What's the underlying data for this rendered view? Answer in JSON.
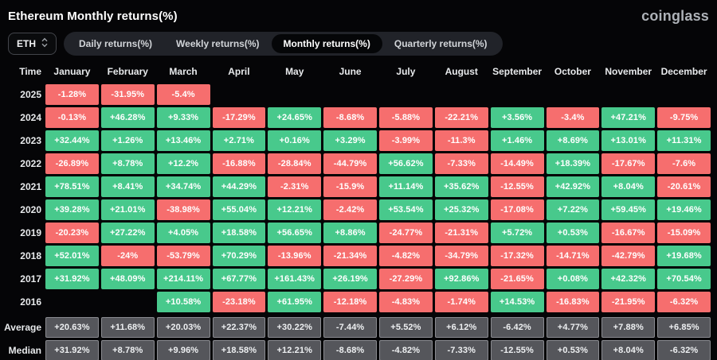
{
  "header": {
    "title": "Ethereum Monthly returns(%)",
    "logo": "coinglass"
  },
  "controls": {
    "symbol": {
      "label": "ETH"
    },
    "tabs": [
      {
        "label": "Daily returns(%)",
        "active": false
      },
      {
        "label": "Weekly returns(%)",
        "active": false
      },
      {
        "label": "Monthly returns(%)",
        "active": true
      },
      {
        "label": "Quarterly returns(%)",
        "active": false
      }
    ]
  },
  "colors": {
    "positive": "#48c98c",
    "negative": "#f66e6e",
    "neutral": "#55565b",
    "neutral_border": "#8a8b90",
    "background": "#050507"
  },
  "chart_data": {
    "type": "heatmap",
    "title": "Ethereum Monthly returns(%)",
    "columns": [
      "Time",
      "January",
      "February",
      "March",
      "April",
      "May",
      "June",
      "July",
      "August",
      "September",
      "October",
      "November",
      "December"
    ],
    "rows": [
      {
        "label": "2025",
        "kind": "year",
        "values": [
          "-1.28%",
          "-31.95%",
          "-5.4%",
          "",
          "",
          "",
          "",
          "",
          "",
          "",
          "",
          ""
        ]
      },
      {
        "label": "2024",
        "kind": "year",
        "values": [
          "-0.13%",
          "+46.28%",
          "+9.33%",
          "-17.29%",
          "+24.65%",
          "-8.68%",
          "-5.88%",
          "-22.21%",
          "+3.56%",
          "-3.4%",
          "+47.21%",
          "-9.75%"
        ]
      },
      {
        "label": "2023",
        "kind": "year",
        "values": [
          "+32.44%",
          "+1.26%",
          "+13.46%",
          "+2.71%",
          "+0.16%",
          "+3.29%",
          "-3.99%",
          "-11.3%",
          "+1.46%",
          "+8.69%",
          "+13.01%",
          "+11.31%"
        ]
      },
      {
        "label": "2022",
        "kind": "year",
        "values": [
          "-26.89%",
          "+8.78%",
          "+12.2%",
          "-16.88%",
          "-28.84%",
          "-44.79%",
          "+56.62%",
          "-7.33%",
          "-14.49%",
          "+18.39%",
          "-17.67%",
          "-7.6%"
        ]
      },
      {
        "label": "2021",
        "kind": "year",
        "values": [
          "+78.51%",
          "+8.41%",
          "+34.74%",
          "+44.29%",
          "-2.31%",
          "-15.9%",
          "+11.14%",
          "+35.62%",
          "-12.55%",
          "+42.92%",
          "+8.04%",
          "-20.61%"
        ]
      },
      {
        "label": "2020",
        "kind": "year",
        "values": [
          "+39.28%",
          "+21.01%",
          "-38.98%",
          "+55.04%",
          "+12.21%",
          "-2.42%",
          "+53.54%",
          "+25.32%",
          "-17.08%",
          "+7.22%",
          "+59.45%",
          "+19.46%"
        ]
      },
      {
        "label": "2019",
        "kind": "year",
        "values": [
          "-20.23%",
          "+27.22%",
          "+4.05%",
          "+18.58%",
          "+56.65%",
          "+8.86%",
          "-24.77%",
          "-21.31%",
          "+5.72%",
          "+0.53%",
          "-16.67%",
          "-15.09%"
        ]
      },
      {
        "label": "2018",
        "kind": "year",
        "values": [
          "+52.01%",
          "-24%",
          "-53.79%",
          "+70.29%",
          "-13.96%",
          "-21.34%",
          "-4.82%",
          "-34.79%",
          "-17.32%",
          "-14.71%",
          "-42.79%",
          "+19.68%"
        ]
      },
      {
        "label": "2017",
        "kind": "year",
        "values": [
          "+31.92%",
          "+48.09%",
          "+214.11%",
          "+67.77%",
          "+161.43%",
          "+26.19%",
          "-27.29%",
          "+92.86%",
          "-21.65%",
          "+0.08%",
          "+42.32%",
          "+70.54%"
        ]
      },
      {
        "label": "2016",
        "kind": "year",
        "values": [
          "",
          "",
          "+10.58%",
          "-23.18%",
          "+61.95%",
          "-12.18%",
          "-4.83%",
          "-1.74%",
          "+14.53%",
          "-16.83%",
          "-21.95%",
          "-6.32%"
        ]
      },
      {
        "label": "Average",
        "kind": "summary",
        "values": [
          "+20.63%",
          "+11.68%",
          "+20.03%",
          "+22.37%",
          "+30.22%",
          "-7.44%",
          "+5.52%",
          "+6.12%",
          "-6.42%",
          "+4.77%",
          "+7.88%",
          "+6.85%"
        ]
      },
      {
        "label": "Median",
        "kind": "summary",
        "values": [
          "+31.92%",
          "+8.78%",
          "+9.96%",
          "+18.58%",
          "+12.21%",
          "-8.68%",
          "-4.82%",
          "-7.33%",
          "-12.55%",
          "+0.53%",
          "+8.04%",
          "-6.32%"
        ]
      }
    ]
  }
}
